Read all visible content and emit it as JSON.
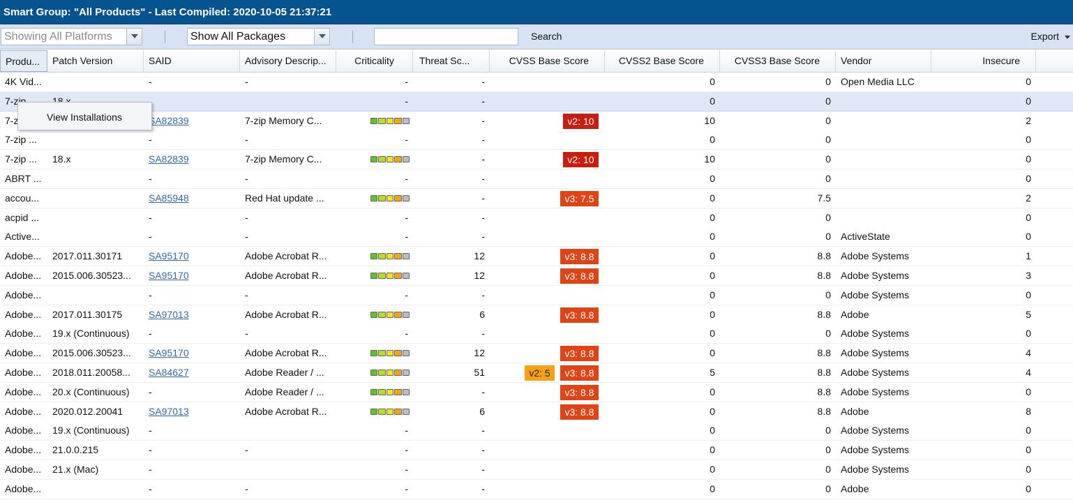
{
  "title": "Smart Group: \"All Products\" - Last Compiled: 2020-10-05 21:37:21",
  "toolbar": {
    "platform": "Showing All Platforms",
    "packages": "Show All Packages",
    "search_value": "",
    "search_label": "Search",
    "export_label": "Export"
  },
  "columns": [
    "Produ...",
    "Patch Version",
    "SAID",
    "Advisory Descrip...",
    "Criticality",
    "Threat Sc...",
    "CVSS Base Score",
    "CVSS2 Base Score",
    "CVSS3 Base Score",
    "Vendor",
    "Insecure"
  ],
  "context_menu": {
    "item": "View Installations"
  },
  "crit_colors": [
    "#5fc32c",
    "#b8dc28",
    "#f4e318",
    "#f6a31a",
    "#bdbdbd"
  ],
  "rows": [
    {
      "product": "4K Vid...",
      "patch": "",
      "said": "-",
      "advisory": "-",
      "crit": "-",
      "threat": "-",
      "cvss": "",
      "cvss2": "0",
      "cvss3": "0",
      "vendor": "Open Media LLC",
      "insecure": "0"
    },
    {
      "product": "7-zip ...",
      "patch": "18.x",
      "said": "",
      "advisory": "",
      "crit": "-",
      "threat": "-",
      "cvss": "",
      "cvss2": "0",
      "cvss3": "0",
      "vendor": "",
      "insecure": "0",
      "selected": true
    },
    {
      "product": "7-zip ...",
      "patch": "",
      "said": "SA82839",
      "advisory": "7-zip Memory C...",
      "crit": "bar",
      "threat": "-",
      "cvss": "v2: 10",
      "cvss_type": "v2",
      "cvss2": "10",
      "cvss3": "0",
      "vendor": "",
      "insecure": "2"
    },
    {
      "product": "7-zip ...",
      "patch": "",
      "said": "-",
      "advisory": "-",
      "crit": "-",
      "threat": "-",
      "cvss": "",
      "cvss2": "0",
      "cvss3": "0",
      "vendor": "",
      "insecure": "0"
    },
    {
      "product": "7-zip ...",
      "patch": "18.x",
      "said": "SA82839",
      "advisory": "7-zip Memory C...",
      "crit": "bar",
      "threat": "-",
      "cvss": "v2: 10",
      "cvss_type": "v2",
      "cvss2": "10",
      "cvss3": "0",
      "vendor": "",
      "insecure": "0"
    },
    {
      "product": "ABRT ...",
      "patch": "",
      "said": "-",
      "advisory": "-",
      "crit": "-",
      "threat": "-",
      "cvss": "",
      "cvss2": "0",
      "cvss3": "0",
      "vendor": "",
      "insecure": "0"
    },
    {
      "product": "accou...",
      "patch": "",
      "said": "SA85948",
      "advisory": "Red Hat update ...",
      "crit": "bar",
      "threat": "-",
      "cvss": "v3: 7.5",
      "cvss_type": "v3",
      "cvss2": "0",
      "cvss3": "7.5",
      "vendor": "",
      "insecure": "2"
    },
    {
      "product": "acpid ...",
      "patch": "",
      "said": "-",
      "advisory": "-",
      "crit": "-",
      "threat": "-",
      "cvss": "",
      "cvss2": "0",
      "cvss3": "0",
      "vendor": "",
      "insecure": "0"
    },
    {
      "product": "Active...",
      "patch": "",
      "said": "-",
      "advisory": "-",
      "crit": "-",
      "threat": "-",
      "cvss": "",
      "cvss2": "0",
      "cvss3": "0",
      "vendor": "ActiveState",
      "insecure": "0"
    },
    {
      "product": "Adobe...",
      "patch": "2017.011.30171",
      "said": "SA95170",
      "advisory": "Adobe Acrobat R...",
      "crit": "bar",
      "threat": "12",
      "cvss": "v3: 8.8",
      "cvss_type": "v3",
      "cvss2": "0",
      "cvss3": "8.8",
      "vendor": "Adobe Systems",
      "insecure": "1"
    },
    {
      "product": "Adobe...",
      "patch": "2015.006.30523...",
      "said": "SA95170",
      "advisory": "Adobe Acrobat R...",
      "crit": "bar",
      "threat": "12",
      "cvss": "v3: 8.8",
      "cvss_type": "v3",
      "cvss2": "0",
      "cvss3": "8.8",
      "vendor": "Adobe Systems",
      "insecure": "3"
    },
    {
      "product": "Adobe...",
      "patch": "",
      "said": "-",
      "advisory": "-",
      "crit": "-",
      "threat": "-",
      "cvss": "",
      "cvss2": "0",
      "cvss3": "0",
      "vendor": "Adobe Systems",
      "insecure": "0"
    },
    {
      "product": "Adobe...",
      "patch": "2017.011.30175",
      "said": "SA97013",
      "advisory": "Adobe Acrobat R...",
      "crit": "bar",
      "threat": "6",
      "cvss": "v3: 8.8",
      "cvss_type": "v3",
      "cvss2": "0",
      "cvss3": "8.8",
      "vendor": "Adobe",
      "insecure": "5"
    },
    {
      "product": "Adobe...",
      "patch": "19.x (Continuous)",
      "said": "-",
      "advisory": "-",
      "crit": "-",
      "threat": "-",
      "cvss": "",
      "cvss2": "0",
      "cvss3": "0",
      "vendor": "Adobe Systems",
      "insecure": "0"
    },
    {
      "product": "Adobe...",
      "patch": "2015.006.30523...",
      "said": "SA95170",
      "advisory": "Adobe Acrobat R...",
      "crit": "bar",
      "threat": "12",
      "cvss": "v3: 8.8",
      "cvss_type": "v3",
      "cvss2": "0",
      "cvss3": "8.8",
      "vendor": "Adobe Systems",
      "insecure": "4"
    },
    {
      "product": "Adobe...",
      "patch": "2018.011.20058...",
      "said": "SA84627",
      "advisory": "Adobe Reader / ...",
      "crit": "bar",
      "threat": "51",
      "cvss": "v3: 8.8",
      "cvss_type": "v3",
      "cvss_extra": "v2: 5",
      "cvss2": "5",
      "cvss3": "8.8",
      "vendor": "Adobe Systems",
      "insecure": "4"
    },
    {
      "product": "Adobe...",
      "patch": "20.x (Continuous)",
      "said": "-",
      "advisory": "Adobe Reader / ...",
      "crit": "bar",
      "threat": "-",
      "cvss": "v3: 8.8",
      "cvss_type": "v3",
      "cvss2": "0",
      "cvss3": "8.8",
      "vendor": "Adobe Systems",
      "insecure": "0"
    },
    {
      "product": "Adobe...",
      "patch": "2020.012.20041",
      "said": "SA97013",
      "advisory": "Adobe Acrobat R...",
      "crit": "bar",
      "threat": "6",
      "cvss": "v3: 8.8",
      "cvss_type": "v3",
      "cvss2": "0",
      "cvss3": "8.8",
      "vendor": "Adobe",
      "insecure": "8"
    },
    {
      "product": "Adobe...",
      "patch": "19.x (Continuous)",
      "said": "-",
      "advisory": "",
      "crit": "-",
      "threat": "-",
      "cvss": "",
      "cvss2": "0",
      "cvss3": "0",
      "vendor": "Adobe Systems",
      "insecure": "0"
    },
    {
      "product": "Adobe...",
      "patch": "21.0.0.215",
      "said": "-",
      "advisory": "-",
      "crit": "-",
      "threat": "-",
      "cvss": "",
      "cvss2": "0",
      "cvss3": "0",
      "vendor": "Adobe Systems",
      "insecure": "0"
    },
    {
      "product": "Adobe...",
      "patch": "21.x (Mac)",
      "said": "-",
      "advisory": "",
      "crit": "-",
      "threat": "-",
      "cvss": "",
      "cvss2": "0",
      "cvss3": "0",
      "vendor": "Adobe Systems",
      "insecure": "0"
    },
    {
      "product": "Adobe...",
      "patch": "",
      "said": "-",
      "advisory": "-",
      "crit": "-",
      "threat": "-",
      "cvss": "",
      "cvss2": "0",
      "cvss3": "0",
      "vendor": "Adobe",
      "insecure": "0"
    }
  ]
}
